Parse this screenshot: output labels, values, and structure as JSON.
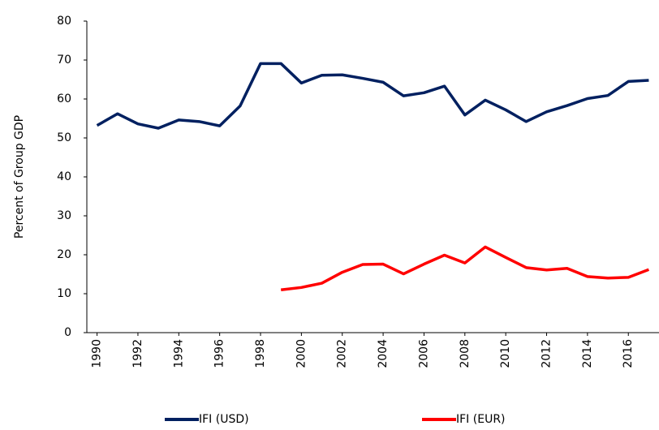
{
  "chart_data": {
    "type": "line",
    "y_label": "Percent of Group GDP",
    "x": [
      1990,
      1991,
      1992,
      1993,
      1994,
      1995,
      1996,
      1997,
      1998,
      1999,
      2000,
      2001,
      2002,
      2003,
      2004,
      2005,
      2006,
      2007,
      2008,
      2009,
      2010,
      2011,
      2012,
      2013,
      2014,
      2015,
      2016,
      2017
    ],
    "series": [
      {
        "name": "IFI (USD)",
        "color": "#002060",
        "values": [
          53.2,
          56.2,
          53.6,
          52.5,
          54.6,
          54.2,
          53.1,
          58.2,
          69.1,
          69.1,
          64.1,
          66.1,
          66.2,
          65.3,
          64.3,
          60.8,
          61.6,
          63.3,
          55.9,
          59.7,
          57.2,
          54.2,
          56.7,
          58.3,
          60.1,
          60.9,
          64.5,
          64.8
        ]
      },
      {
        "name": "IFI (EUR)",
        "color": "#ff0000",
        "values": [
          null,
          null,
          null,
          null,
          null,
          null,
          null,
          null,
          null,
          11.0,
          11.6,
          12.7,
          15.5,
          17.5,
          17.6,
          15.1,
          17.6,
          19.9,
          17.9,
          22.0,
          19.3,
          16.7,
          16.1,
          16.5,
          14.4,
          14.0,
          14.2,
          16.2
        ]
      }
    ],
    "xlim": [
      1989.5,
      2017.5
    ],
    "xticks": [
      1990,
      1992,
      1994,
      1996,
      1998,
      2000,
      2002,
      2004,
      2006,
      2008,
      2010,
      2012,
      2014,
      2016
    ],
    "ylim": [
      0,
      80
    ],
    "yticks": [
      0,
      10,
      20,
      30,
      40,
      50,
      60,
      70,
      80
    ],
    "legend": "bottom"
  }
}
